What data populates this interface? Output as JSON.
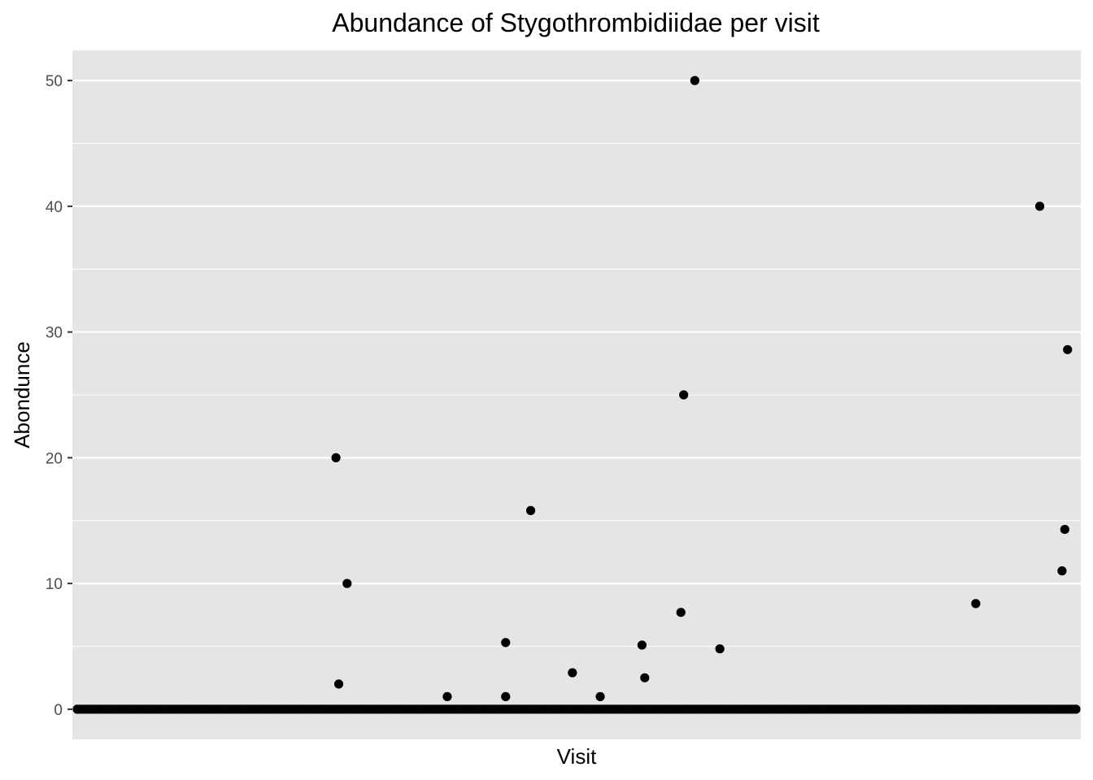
{
  "chart_data": {
    "type": "scatter",
    "title": "Abundance of Stygothrombidiidae per visit",
    "xlabel": "Visit",
    "ylabel": "Abondunce",
    "ylim": [
      -2.4,
      52.4
    ],
    "y_ticks": [
      0,
      10,
      20,
      30,
      40,
      50
    ],
    "x_tick_labels": "none",
    "x_count": 360,
    "grid": true,
    "legend": "none",
    "colors": {
      "panel": "#e5e5e5",
      "grid": "#ffffff",
      "point": "#000000",
      "tick_text": "#4d4d4d",
      "tick_mark": "#333333"
    },
    "nonzero_points": [
      {
        "x": 94,
        "y": 20
      },
      {
        "x": 95,
        "y": 2
      },
      {
        "x": 98,
        "y": 10
      },
      {
        "x": 134,
        "y": 1
      },
      {
        "x": 155,
        "y": 1
      },
      {
        "x": 155,
        "y": 5.3
      },
      {
        "x": 164,
        "y": 15.8
      },
      {
        "x": 179,
        "y": 2.9
      },
      {
        "x": 189,
        "y": 1
      },
      {
        "x": 204,
        "y": 5.1
      },
      {
        "x": 205,
        "y": 2.5
      },
      {
        "x": 218,
        "y": 7.7
      },
      {
        "x": 219,
        "y": 25
      },
      {
        "x": 223,
        "y": 50
      },
      {
        "x": 232,
        "y": 4.8
      },
      {
        "x": 324,
        "y": 8.4
      },
      {
        "x": 347,
        "y": 40
      },
      {
        "x": 355,
        "y": 11
      },
      {
        "x": 356,
        "y": 14.3
      },
      {
        "x": 357,
        "y": 28.6
      }
    ],
    "zero_value": 0
  }
}
